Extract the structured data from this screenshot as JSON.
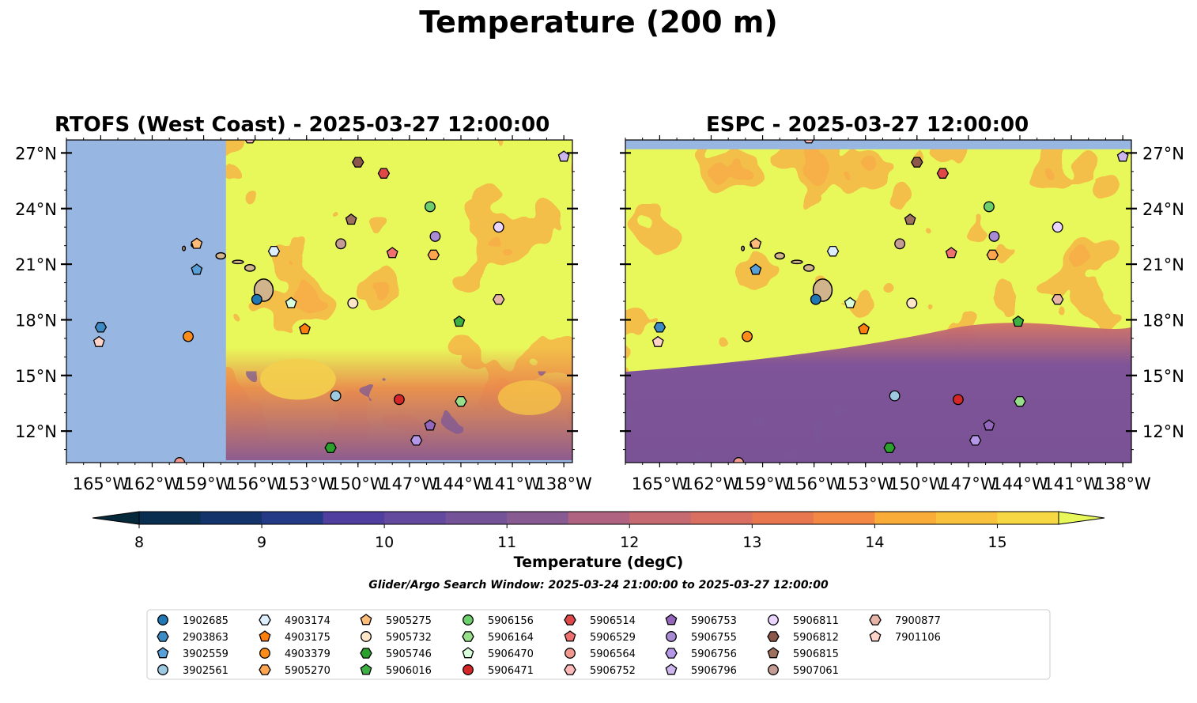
{
  "figure": {
    "suptitle": "Temperature (200 m)",
    "colorbar_label": "Temperature (degC)",
    "search_window": "Glider/Argo Search Window: 2025-03-24 21:00:00 to 2025-03-27 12:00:00"
  },
  "colors": {
    "land": "#d2b48c",
    "ocean_mask": "#97b6e1",
    "warm": "#e8f85a",
    "colormap": [
      "#05283a",
      "#0a2e4f",
      "#14336a",
      "#253a86",
      "#3b3a99",
      "#503f9e",
      "#634a9e",
      "#755399",
      "#875b92",
      "#9a5f8a",
      "#b06380",
      "#c66a72",
      "#d96f61",
      "#e87750",
      "#f28844",
      "#f69b3c",
      "#f9ad38",
      "#f8c23d",
      "#f7d744",
      "#e8f85a"
    ]
  },
  "chart_data": [
    {
      "type": "heatmap",
      "title": "RTOFS (West Coast) - 2025-03-27 12:00:00",
      "xlim": [
        -167,
        -137.5
      ],
      "ylim": [
        10.3,
        27.7
      ],
      "xticks": [
        -165,
        -162,
        -159,
        -156,
        -153,
        -150,
        -147,
        -144,
        -141,
        -138
      ],
      "yticks": [
        12,
        15,
        18,
        21,
        24,
        27
      ],
      "xticklabels": [
        "165°W",
        "162°W",
        "159°W",
        "156°W",
        "153°W",
        "150°W",
        "147°W",
        "144°W",
        "141°W",
        "138°W"
      ],
      "yticklabels": [
        "12°N",
        "15°N",
        "18°N",
        "21°N",
        "24°N",
        "27°N"
      ],
      "ytick_side": "left",
      "model_domain_west_lon": -157.7,
      "field_description_levels": "warm (>15 degC) north of ~16°N, cooler 10-13 degC patches south"
    },
    {
      "type": "heatmap",
      "title": "ESPC - 2025-03-27 12:00:00",
      "xlim": [
        -167,
        -137.5
      ],
      "ylim": [
        10.3,
        27.7
      ],
      "xticks": [
        -165,
        -162,
        -159,
        -156,
        -153,
        -150,
        -147,
        -144,
        -141,
        -138
      ],
      "yticks": [
        12,
        15,
        18,
        21,
        24,
        27
      ],
      "xticklabels": [
        "165°W",
        "162°W",
        "159°W",
        "156°W",
        "153°W",
        "150°W",
        "147°W",
        "144°W",
        "141°W",
        "138°W"
      ],
      "yticklabels": [
        "12°N",
        "15°N",
        "18°N",
        "21°N",
        "24°N",
        "27°N"
      ],
      "ytick_side": "right",
      "model_domain_north_lat": 27.2
    },
    {
      "type": "colorbar",
      "vmin": 7.6,
      "vmax": 15.9,
      "boundaries": [
        8.0,
        8.5,
        9.0,
        9.5,
        10.0,
        10.5,
        11.0,
        11.5,
        12.0,
        12.5,
        13.0,
        13.5,
        14.0,
        14.5,
        15.0,
        15.5
      ],
      "ticks": [
        8,
        9,
        10,
        11,
        12,
        13,
        14,
        15
      ],
      "ticklabels": [
        "8",
        "9",
        "10",
        "11",
        "12",
        "13",
        "14",
        "15"
      ],
      "extend": "both"
    }
  ],
  "floats": [
    {
      "id": "1902685",
      "marker": "circle",
      "color": "#1f77b4",
      "lon": -155.9,
      "lat": 19.1
    },
    {
      "id": "2903863",
      "marker": "hexagon",
      "color": "#3d8bc4",
      "lon": -165.0,
      "lat": 17.6
    },
    {
      "id": "3902559",
      "marker": "pentagon",
      "color": "#5aa0d8",
      "lon": -159.4,
      "lat": 20.7
    },
    {
      "id": "3902561",
      "marker": "circle",
      "color": "#9ecae1",
      "lon": -151.3,
      "lat": 13.9
    },
    {
      "id": "4903174",
      "marker": "hexagon",
      "color": "#ddeeff",
      "lon": -154.9,
      "lat": 21.7
    },
    {
      "id": "4903175",
      "marker": "pentagon",
      "color": "#ff7f0e",
      "lon": -153.1,
      "lat": 17.5
    },
    {
      "id": "4903379",
      "marker": "circle",
      "color": "#ff8c1a",
      "lon": -159.9,
      "lat": 17.1
    },
    {
      "id": "5905270",
      "marker": "hexagon",
      "color": "#ffa54f",
      "lon": -145.6,
      "lat": 21.5
    },
    {
      "id": "5905275",
      "marker": "pentagon",
      "color": "#ffbb78",
      "lon": -159.4,
      "lat": 22.1
    },
    {
      "id": "5905732",
      "marker": "circle",
      "color": "#ffe6c8",
      "lon": -150.3,
      "lat": 18.9
    },
    {
      "id": "5905746",
      "marker": "hexagon",
      "color": "#2ca02c",
      "lon": -151.6,
      "lat": 11.1
    },
    {
      "id": "5906016",
      "marker": "pentagon",
      "color": "#3cb043",
      "lon": -144.1,
      "lat": 17.9
    },
    {
      "id": "5906156",
      "marker": "circle",
      "color": "#6ccf6c",
      "lon": -145.8,
      "lat": 24.1
    },
    {
      "id": "5906164",
      "marker": "hexagon",
      "color": "#98df8a",
      "lon": -144.0,
      "lat": 13.6
    },
    {
      "id": "5906470",
      "marker": "pentagon",
      "color": "#d8fedb",
      "lon": -153.9,
      "lat": 18.9
    },
    {
      "id": "5906471",
      "marker": "circle",
      "color": "#d62728",
      "lon": -147.6,
      "lat": 13.7
    },
    {
      "id": "5906514",
      "marker": "hexagon",
      "color": "#e04848",
      "lon": -148.5,
      "lat": 25.9
    },
    {
      "id": "5906529",
      "marker": "pentagon",
      "color": "#f07070",
      "lon": -148.0,
      "lat": 21.6
    },
    {
      "id": "5906564",
      "marker": "circle",
      "color": "#f2998f",
      "lon": -160.4,
      "lat": 10.3
    },
    {
      "id": "5906752",
      "marker": "hexagon",
      "color": "#ffb9b9",
      "lon": -156.3,
      "lat": 27.8
    },
    {
      "id": "5906753",
      "marker": "pentagon",
      "color": "#9467bd",
      "lon": -145.8,
      "lat": 12.3
    },
    {
      "id": "5906755",
      "marker": "circle",
      "color": "#a98bd4",
      "lon": -145.5,
      "lat": 22.5
    },
    {
      "id": "5906756",
      "marker": "hexagon",
      "color": "#b497e7",
      "lon": -146.6,
      "lat": 11.5
    },
    {
      "id": "5906796",
      "marker": "pentagon",
      "color": "#cdb5f0",
      "lon": -138.0,
      "lat": 26.8
    },
    {
      "id": "5906811",
      "marker": "circle",
      "color": "#e9d5ff",
      "lon": -141.8,
      "lat": 23.0
    },
    {
      "id": "5906812",
      "marker": "hexagon",
      "color": "#8c564b",
      "lon": -150.0,
      "lat": 26.5
    },
    {
      "id": "5906815",
      "marker": "pentagon",
      "color": "#a0705e",
      "lon": -150.4,
      "lat": 23.4
    },
    {
      "id": "5907061",
      "marker": "circle",
      "color": "#c49c94",
      "lon": -151.0,
      "lat": 22.1
    },
    {
      "id": "7900877",
      "marker": "hexagon",
      "color": "#e8b4a8",
      "lon": -141.8,
      "lat": 19.1
    },
    {
      "id": "7901106",
      "marker": "pentagon",
      "color": "#ffd4c8",
      "lon": -165.1,
      "lat": 16.8
    }
  ]
}
